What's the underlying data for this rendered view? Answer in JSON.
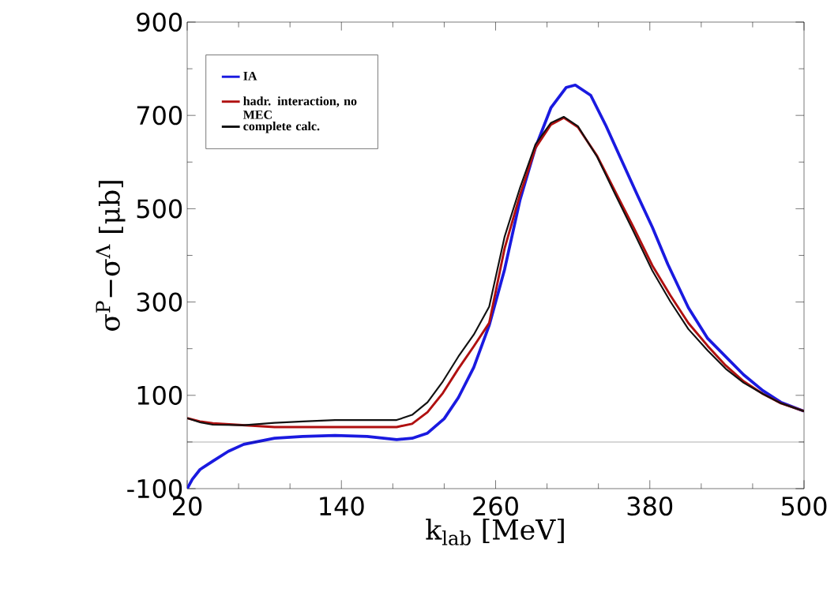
{
  "chart_data": {
    "type": "line",
    "xlabel": "k$_{lab}$ [MeV]",
    "ylabel": "σ$^{P}$−σ$^{Λ}$ [μb]",
    "xlim": [
      20,
      500
    ],
    "ylim": [
      -100,
      900
    ],
    "xticks": [
      20,
      140,
      260,
      380,
      500
    ],
    "yticks": [
      -100,
      100,
      300,
      500,
      700,
      900
    ],
    "grid": false,
    "legend": "top left",
    "marker": "none",
    "line_style": "solid",
    "ref_lines": [
      {
        "axis": "y",
        "value": 0,
        "color": "#000000"
      }
    ],
    "series": [
      {
        "name": "IA",
        "color": "#1a1ae0",
        "x": [
          20,
          24,
          30,
          40,
          52,
          64,
          88,
          110,
          135,
          160,
          183,
          195,
          207,
          220,
          231,
          243,
          255,
          267,
          279,
          291,
          303,
          315,
          322,
          334,
          346,
          358,
          370,
          382,
          394,
          410,
          425,
          439,
          453,
          468,
          482,
          500
        ],
        "values": [
          -100,
          -80,
          -59,
          -41,
          -20,
          -5,
          8,
          12,
          14,
          12,
          5,
          8,
          19,
          50,
          95,
          160,
          250,
          370,
          519,
          631,
          716,
          760,
          765,
          743,
          677,
          604,
          531,
          460,
          381,
          288,
          222,
          183,
          144,
          110,
          85,
          66
        ]
      },
      {
        "name": "hadr. interaction, no MEC",
        "color": "#b01010",
        "x": [
          20,
          30,
          40,
          64,
          88,
          110,
          135,
          160,
          183,
          195,
          207,
          219,
          231,
          243,
          255,
          267,
          279,
          291,
          303,
          313,
          324,
          339,
          353,
          367,
          382,
          396,
          410,
          425,
          439,
          453,
          468,
          482,
          500
        ],
        "values": [
          51,
          44,
          40,
          36,
          32,
          32,
          32,
          32,
          32,
          39,
          64,
          105,
          157,
          205,
          255,
          415,
          530,
          630,
          680,
          695,
          675,
          613,
          537,
          462,
          378,
          314,
          255,
          206,
          164,
          130,
          103,
          83,
          66
        ]
      },
      {
        "name": "complete calc.",
        "color": "#111111",
        "x": [
          20,
          30,
          40,
          64,
          88,
          110,
          135,
          160,
          183,
          195,
          207,
          219,
          231,
          243,
          255,
          267,
          279,
          291,
          303,
          313,
          324,
          339,
          353,
          367,
          382,
          396,
          410,
          425,
          439,
          453,
          468,
          482,
          500
        ],
        "values": [
          51,
          42,
          37,
          36,
          41,
          44,
          47,
          47,
          47,
          58,
          85,
          130,
          183,
          230,
          290,
          440,
          545,
          638,
          684,
          697,
          677,
          611,
          531,
          453,
          367,
          301,
          242,
          196,
          157,
          127,
          103,
          83,
          66
        ]
      }
    ]
  }
}
